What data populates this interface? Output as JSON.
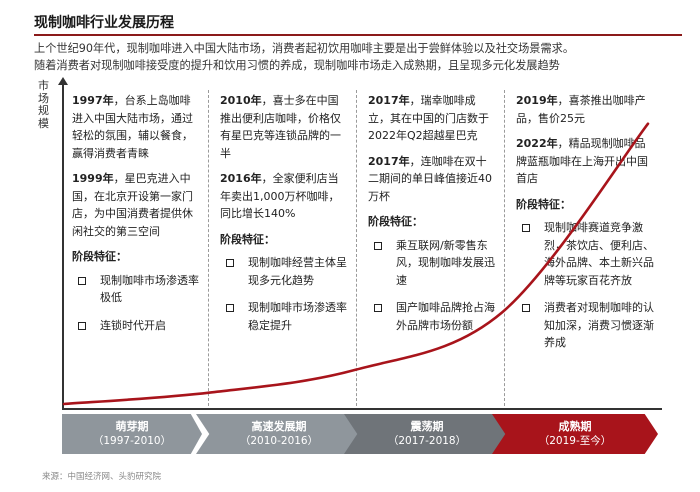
{
  "title": "现制咖啡行业发展历程",
  "intro": [
    "上个世纪90年代，现制咖啡进入中国大陆市场，消费者起初饮用咖啡主要是出于尝鲜体验以及社交场景需求。",
    "随着消费者对现制咖啡接受度的提升和饮用习惯的养成，现制咖啡市场走入成熟期，且呈现多元化发展趋势"
  ],
  "y_axis_label": "市场规模",
  "columns": [
    {
      "events": [
        {
          "year": "1997年",
          "text": "，台系上岛咖啡进入中国大陆市场，通过轻松的氛围，辅以餐食，赢得消费者青睐"
        },
        {
          "year": "1999年",
          "text": "，星巴克进入中国，在北京开设第一家门店，为中国消费者提供休闲社交的第三空间"
        }
      ],
      "feature_title": "阶段特征：",
      "features": [
        "现制咖啡市场渗透率极低",
        "连锁时代开启"
      ]
    },
    {
      "events": [
        {
          "year": "2010年",
          "text": "，喜士多在中国推出便利店咖啡，价格仅有星巴克等连锁品牌的一半"
        },
        {
          "year": "2016年",
          "text": "，全家便利店当年卖出1,000万杯咖啡，同比增长140%"
        }
      ],
      "feature_title": "阶段特征：",
      "features": [
        "现制咖啡经营主体呈现多元化趋势",
        "现制咖啡市场渗透率稳定提升"
      ]
    },
    {
      "events": [
        {
          "year": "2017年",
          "text": "，瑞幸咖啡成立，其在中国的门店数于2022年Q2超越星巴克"
        },
        {
          "year": "2017年",
          "text": "，连咖啡在双十二期间的单日峰值接近40万杯"
        }
      ],
      "feature_title": "阶段特征：",
      "features": [
        "乘互联网/新零售东风，现制咖啡发展迅速",
        "国产咖啡品牌抢占海外品牌市场份额"
      ]
    },
    {
      "events": [
        {
          "year": "2019年",
          "text": "，喜茶推出咖啡产品，售价25元"
        },
        {
          "year": "2022年",
          "text": "，精品现制咖啡品牌蓝瓶咖啡在上海开出中国首店"
        }
      ],
      "feature_title": "阶段特征：",
      "features": [
        "现制咖啡赛道竞争激烈，茶饮店、便利店、海外品牌、本土新兴品牌等玩家百花齐放",
        "消费者对现制咖啡的认知加深，消费习惯逐渐养成"
      ]
    }
  ],
  "phases": [
    {
      "name": "萌芽期",
      "range": "（1997-2010）",
      "color": "#8f969c"
    },
    {
      "name": "高速发展期",
      "range": "（2010-2016）",
      "color": "#8f969c"
    },
    {
      "name": "震荡期",
      "range": "（2017-2018）",
      "color": "#6f7479"
    },
    {
      "name": "成熟期",
      "range": "（2019-至今）",
      "color": "#a8141b"
    }
  ],
  "curve_color": "#a8141b",
  "source": "来源：中国经济网、头豹研究院",
  "chart_data": {
    "type": "line",
    "title": "现制咖啡行业发展历程",
    "ylabel": "市场规模",
    "categories": [
      "萌芽期（1997-2010）",
      "高速发展期（2010-2016）",
      "震荡期（2017-2018）",
      "成熟期（2019-至今）"
    ],
    "series": [
      {
        "values": [
          0.04,
          0.12,
          0.32,
          0.98
        ]
      }
    ],
    "ylim": [
      0,
      1
    ],
    "grid": false
  }
}
